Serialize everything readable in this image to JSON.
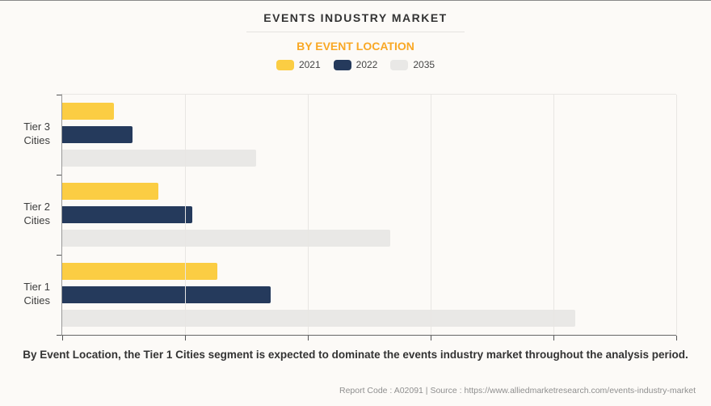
{
  "page": {
    "background": "#FCFAF7",
    "title": "EVENTS INDUSTRY MARKET",
    "subtitle": "BY EVENT LOCATION",
    "subtitle_color": "#F9A825",
    "caption": "By Event Location, the Tier 1 Cities segment is expected to dominate the events industry market throughout the analysis period.",
    "footer": "Report Code : A02091  |  Source : https://www.alliedmarketresearch.com/events-industry-market"
  },
  "chart_data": {
    "type": "bar",
    "orientation": "horizontal",
    "title": "EVENTS INDUSTRY MARKET",
    "subtitle": "BY EVENT LOCATION",
    "categories": [
      "Tier 3\nCities",
      "Tier 2\nCities",
      "Tier 1\nCities"
    ],
    "series": [
      {
        "name": "2021",
        "color": "#FBCD43",
        "values": [
          8.4,
          15.7,
          25.3
        ]
      },
      {
        "name": "2022",
        "color": "#253A5C",
        "values": [
          11.4,
          21.2,
          33.9
        ]
      },
      {
        "name": "2035",
        "color": "#E9E8E6",
        "values": [
          31.6,
          53.4,
          83.6
        ]
      }
    ],
    "xlim": [
      0,
      100
    ],
    "x_tick_labels_shown": false,
    "values_unit": "percent of x-axis width (chart shows no numeric labels)",
    "grid": "vertical",
    "grid_percents": [
      20,
      40,
      60,
      80,
      100
    ],
    "legend_position": "top-center"
  }
}
